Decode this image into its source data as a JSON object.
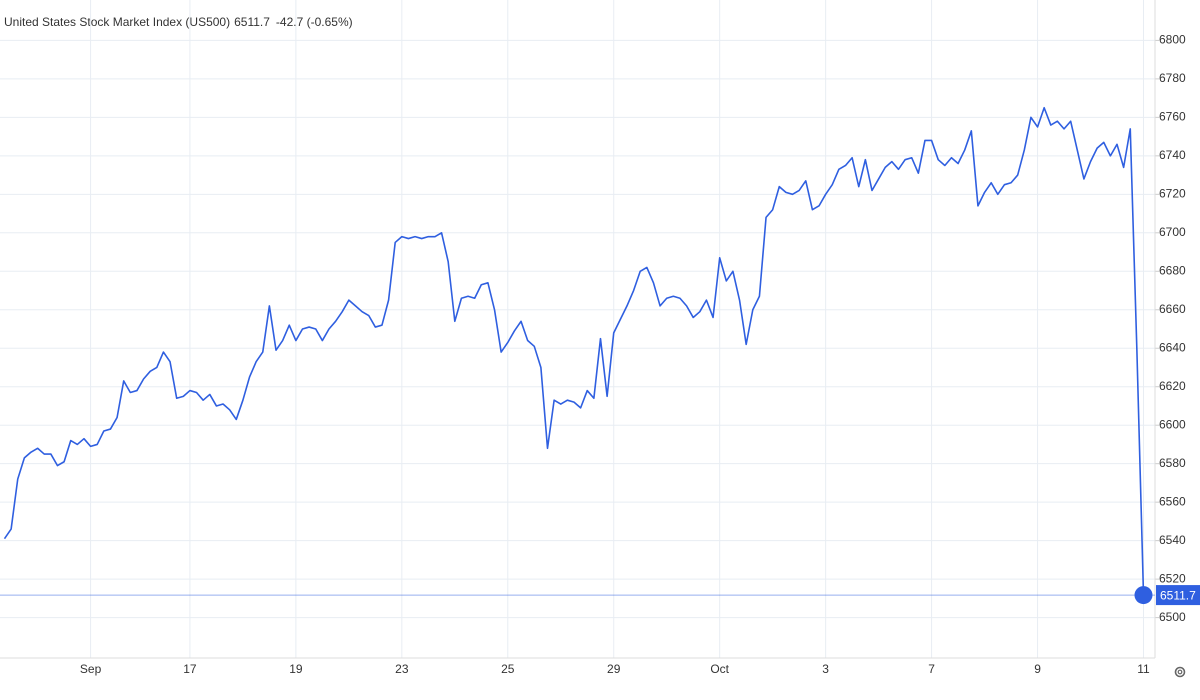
{
  "chart_data": {
    "type": "line",
    "title": "United States Stock Market Index (US500)",
    "price": 6511.7,
    "change_label": "-42.7 (-0.65%)",
    "color": "#2f5fe0",
    "price_color": "#2f5fe0",
    "change_color": "#d9534f",
    "grid": true,
    "ylim": [
      6479,
      6821
    ],
    "yticks": [
      6500,
      6520,
      6540,
      6560,
      6580,
      6600,
      6620,
      6640,
      6660,
      6680,
      6700,
      6720,
      6740,
      6760,
      6780,
      6800
    ],
    "categories": [
      null,
      null,
      null,
      null,
      null,
      null,
      null,
      null,
      null,
      null,
      null,
      null,
      null,
      "Sep",
      null,
      null,
      null,
      null,
      null,
      null,
      null,
      null,
      null,
      null,
      null,
      null,
      null,
      null,
      "17",
      null,
      null,
      null,
      null,
      null,
      null,
      null,
      null,
      null,
      null,
      null,
      null,
      null,
      null,
      null,
      "19",
      null,
      null,
      null,
      null,
      null,
      null,
      null,
      null,
      null,
      null,
      null,
      null,
      null,
      null,
      null,
      "23",
      null,
      null,
      null,
      null,
      null,
      null,
      null,
      null,
      null,
      null,
      null,
      null,
      null,
      null,
      null,
      "25",
      null,
      null,
      null,
      null,
      null,
      null,
      null,
      null,
      null,
      null,
      null,
      null,
      null,
      null,
      null,
      "29",
      null,
      null,
      null,
      null,
      null,
      null,
      null,
      null,
      null,
      null,
      null,
      null,
      null,
      null,
      null,
      "Oct",
      null,
      null,
      null,
      null,
      null,
      null,
      null,
      null,
      null,
      null,
      null,
      null,
      null,
      null,
      null,
      "3",
      null,
      null,
      null,
      null,
      null,
      null,
      null,
      null,
      null,
      null,
      null,
      null,
      null,
      null,
      null,
      "7",
      null,
      null,
      null,
      null,
      null,
      null,
      null,
      null,
      null,
      null,
      null,
      null,
      null,
      null,
      null,
      "9",
      null,
      null,
      null,
      null,
      null,
      null,
      null,
      null,
      null,
      null,
      null,
      null,
      null,
      null,
      null,
      "11"
    ],
    "values": [
      6541,
      6546,
      6572,
      6583,
      6586,
      6588,
      6585,
      6585,
      6579,
      6581,
      6592,
      6590,
      6593,
      6589,
      6590,
      6597,
      6598,
      6604,
      6623,
      6617,
      6618,
      6624,
      6628,
      6630,
      6638,
      6633,
      6614,
      6615,
      6618,
      6617,
      6613,
      6616,
      6610,
      6611,
      6608,
      6603,
      6613,
      6625,
      6633,
      6638,
      6662,
      6639,
      6644,
      6652,
      6644,
      6650,
      6651,
      6650,
      6644,
      6650,
      6654,
      6659,
      6665,
      6662,
      6659,
      6657,
      6651,
      6652,
      6665,
      6695,
      6698,
      6697,
      6698,
      6697,
      6698,
      6698,
      6700,
      6685,
      6654,
      6666,
      6667,
      6666,
      6673,
      6674,
      6660,
      6638,
      6643,
      6649,
      6654,
      6644,
      6641,
      6630,
      6588,
      6613,
      6611,
      6613,
      6612,
      6609,
      6618,
      6614,
      6645,
      6615,
      6648,
      6655,
      6662,
      6670,
      6680,
      6682,
      6674,
      6662,
      6666,
      6667,
      6666,
      6662,
      6656,
      6659,
      6665,
      6656,
      6687,
      6675,
      6680,
      6665,
      6642,
      6660,
      6667,
      6708,
      6712,
      6724,
      6721,
      6720,
      6722,
      6727,
      6712,
      6714,
      6720,
      6725,
      6733,
      6735,
      6739,
      6724,
      6738,
      6722,
      6728,
      6734,
      6737,
      6733,
      6738,
      6739,
      6731,
      6748,
      6748,
      6738,
      6735,
      6739,
      6736,
      6743,
      6753,
      6714,
      6721,
      6726,
      6720,
      6725,
      6726,
      6730,
      6743,
      6760,
      6755,
      6765,
      6756,
      6758,
      6754,
      6758,
      6743,
      6728,
      6737,
      6744,
      6747,
      6740,
      6746,
      6734,
      6754,
      6639,
      6511.7
    ]
  }
}
